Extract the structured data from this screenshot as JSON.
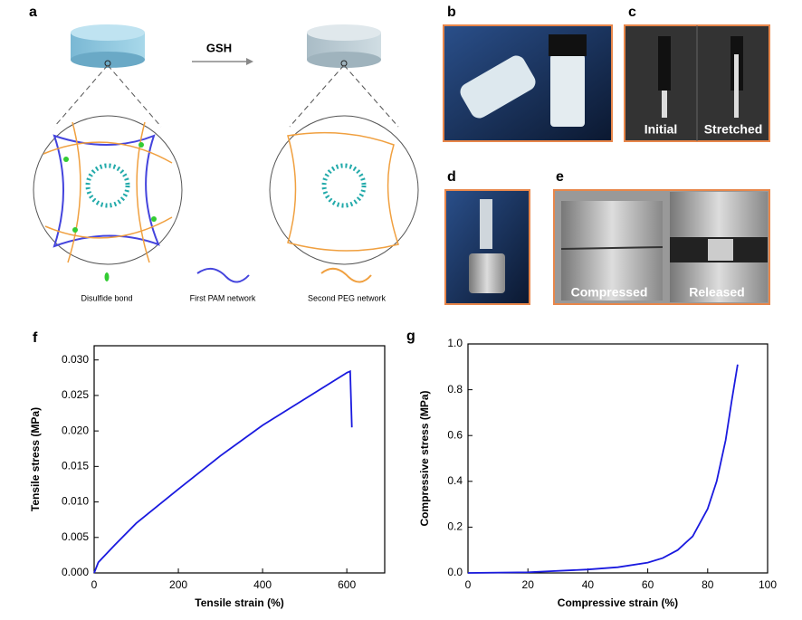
{
  "panels": {
    "a": {
      "label": "a",
      "arrow": "GSH",
      "legend": [
        "Disulfide bond",
        "First PAM network",
        "Second PEG network"
      ]
    },
    "b": {
      "label": "b"
    },
    "c": {
      "label": "c",
      "captions": [
        "Initial",
        "Stretched"
      ]
    },
    "d": {
      "label": "d"
    },
    "e": {
      "label": "e",
      "captions": [
        "Compressed",
        "Released"
      ]
    }
  },
  "chart_data": [
    {
      "type": "line",
      "label": "f",
      "x_label": "Tensile strain (%)",
      "y_label": "Tensile stress (MPa)",
      "xlim": [
        0,
        690
      ],
      "ylim": [
        0,
        0.032
      ],
      "xticks": [
        0,
        200,
        400,
        600
      ],
      "yticks": [
        {
          "value": 0,
          "label": "0.000"
        },
        0.005,
        {
          "value": 0.01,
          "label": "0.010"
        },
        0.015,
        {
          "value": 0.02,
          "label": "0.020"
        },
        0.025,
        {
          "value": 0.03,
          "label": "0.030"
        }
      ],
      "series": [
        {
          "color": "#1a1adf",
          "x": [
            0,
            10,
            50,
            100,
            200,
            300,
            400,
            500,
            600,
            608,
            612
          ],
          "values": [
            0,
            0.0015,
            0.004,
            0.007,
            0.0118,
            0.0165,
            0.0208,
            0.0245,
            0.0282,
            0.0284,
            0.0205
          ]
        }
      ]
    },
    {
      "type": "line",
      "label": "g",
      "x_label": "Compressive strain (%)",
      "y_label": "Compressive stress (MPa)",
      "xlim": [
        0,
        100
      ],
      "ylim": [
        0,
        1
      ],
      "xticks": [
        0,
        20,
        40,
        60,
        80,
        100
      ],
      "yticks": [
        {
          "value": 0,
          "label": "0.0"
        },
        0.2,
        0.4,
        0.6,
        0.8,
        {
          "value": 1,
          "label": "1.0"
        }
      ],
      "series": [
        {
          "color": "#1a1adf",
          "x": [
            0,
            20,
            40,
            50,
            60,
            65,
            70,
            75,
            80,
            83,
            86,
            88,
            90
          ],
          "values": [
            0,
            0.003,
            0.015,
            0.025,
            0.045,
            0.065,
            0.1,
            0.16,
            0.28,
            0.4,
            0.58,
            0.75,
            0.91
          ]
        }
      ]
    }
  ]
}
